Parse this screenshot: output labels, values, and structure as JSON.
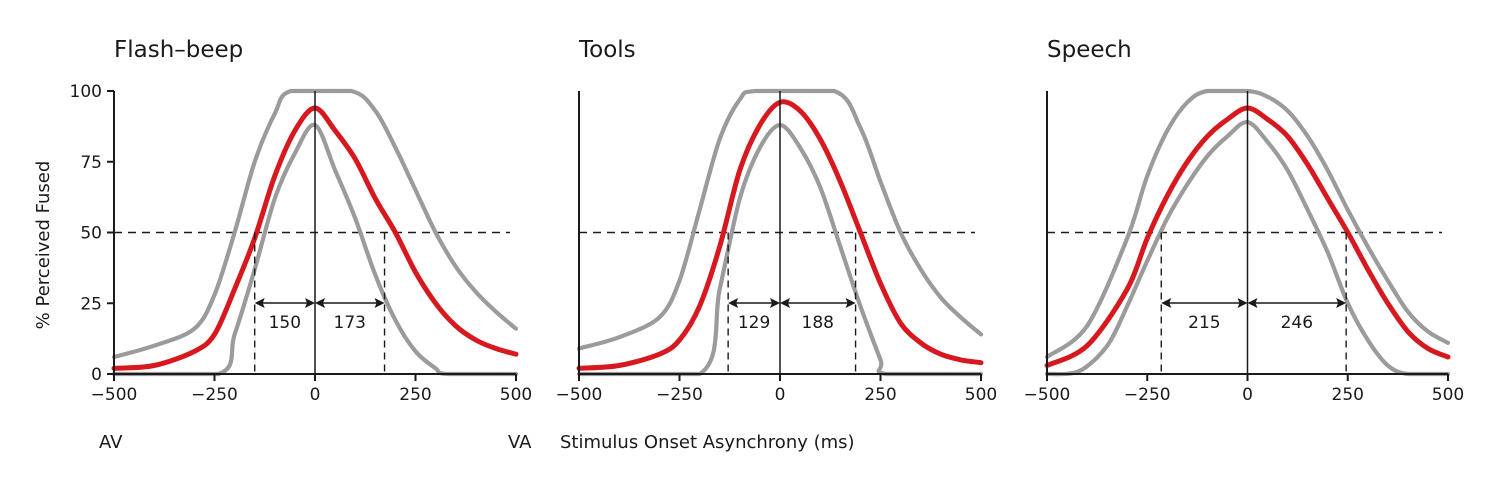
{
  "chart_data": {
    "type": "line",
    "ylabel": "% Perceived Fused",
    "xlabel": "Stimulus Onset Asynchrony (ms)",
    "x_end_labels": {
      "left": "AV",
      "right": "VA"
    },
    "xlim": [
      -500,
      500
    ],
    "ylim": [
      0,
      100
    ],
    "xticks": [
      -500,
      -250,
      0,
      250,
      500
    ],
    "xtick_labels": [
      "−500",
      "−250",
      "0",
      "250",
      "500"
    ],
    "yticks": [
      0,
      25,
      50,
      75,
      100
    ],
    "ytick_labels": [
      "0",
      "25",
      "50",
      "75",
      "100"
    ],
    "threshold": 50,
    "colors": {
      "mean": "#d7191f",
      "bounds": "#9b9b9b",
      "axis": "#1a1a1a"
    },
    "panels": [
      {
        "title": "Flash–beep",
        "window_left": 150,
        "window_right": 173,
        "window_left_label": "150",
        "window_right_label": "173",
        "show_y_ticks": true,
        "series": [
          {
            "name": "upper bound",
            "role": "bounds",
            "x": [
              -500,
              -400,
              -300,
              -250,
              -200,
              -150,
              -100,
              -60,
              90,
              150,
              200,
              250,
              300,
              350,
              400,
              450,
              500
            ],
            "y": [
              6,
              10,
              16,
              28,
              50,
              75,
              92,
              100,
              100,
              93,
              80,
              65,
              50,
              38,
              29,
              22,
              16
            ]
          },
          {
            "name": "lower bound",
            "role": "bounds",
            "x": [
              -500,
              -240,
              -200,
              -150,
              -100,
              -50,
              0,
              50,
              100,
              150,
              200,
              250,
              300,
              330,
              500
            ],
            "y": [
              0,
              0,
              14,
              37,
              62,
              78,
              88,
              72,
              55,
              35,
              19,
              8,
              2,
              0,
              0
            ]
          },
          {
            "name": "mean",
            "role": "mean",
            "x": [
              -500,
              -400,
              -300,
              -250,
              -200,
              -150,
              -100,
              -50,
              0,
              50,
              100,
              150,
              200,
              250,
              300,
              350,
              400,
              450,
              500
            ],
            "y": [
              2,
              3,
              8,
              14,
              30,
              48,
              70,
              86,
              94,
              86,
              76,
              62,
              50,
              36,
              25,
              17,
              12,
              9,
              7
            ]
          }
        ]
      },
      {
        "title": "Tools",
        "window_left": 129,
        "window_right": 188,
        "window_left_label": "129",
        "window_right_label": "188",
        "show_y_ticks": false,
        "series": [
          {
            "name": "upper bound",
            "role": "bounds",
            "x": [
              -500,
              -400,
              -300,
              -250,
              -200,
              -150,
              -100,
              -60,
              135,
              200,
              250,
              300,
              350,
              400,
              450,
              500
            ],
            "y": [
              9,
              13,
              20,
              33,
              58,
              83,
              97,
              100,
              100,
              87,
              68,
              50,
              37,
              27,
              20,
              14
            ]
          },
          {
            "name": "lower bound",
            "role": "bounds",
            "x": [
              -500,
              -200,
              -150,
              -100,
              -50,
              0,
              50,
              100,
              150,
              200,
              250,
              265,
              500
            ],
            "y": [
              0,
              0,
              30,
              62,
              80,
              88,
              80,
              66,
              45,
              24,
              5,
              0,
              0
            ]
          },
          {
            "name": "mean",
            "role": "mean",
            "x": [
              -500,
              -400,
              -300,
              -250,
              -200,
              -150,
              -100,
              -50,
              0,
              50,
              100,
              150,
              200,
              250,
              300,
              350,
              400,
              450,
              500
            ],
            "y": [
              2,
              3,
              7,
              12,
              24,
              45,
              72,
              88,
              96,
              93,
              83,
              68,
              50,
              32,
              18,
              11,
              7,
              5,
              4
            ]
          }
        ]
      },
      {
        "title": "Speech",
        "window_left": 215,
        "window_right": 246,
        "window_left_label": "215",
        "window_right_label": "246",
        "show_y_ticks": false,
        "series": [
          {
            "name": "upper bound",
            "role": "bounds",
            "x": [
              -500,
              -400,
              -300,
              -250,
              -200,
              -150,
              -100,
              0,
              50,
              100,
              150,
              200,
              250,
              300,
              350,
              400,
              450,
              500
            ],
            "y": [
              6,
              17,
              48,
              70,
              86,
              96,
              100,
              100,
              98,
              93,
              84,
              72,
              58,
              45,
              33,
              22,
              15,
              11
            ]
          },
          {
            "name": "lower bound",
            "role": "bounds",
            "x": [
              -500,
              -420,
              -350,
              -300,
              -250,
              -200,
              -150,
              -100,
              -50,
              0,
              50,
              100,
              150,
              200,
              250,
              300,
              350,
              400,
              500
            ],
            "y": [
              0,
              1,
              10,
              24,
              40,
              55,
              67,
              77,
              84,
              89,
              82,
              72,
              58,
              43,
              25,
              12,
              3,
              0,
              0
            ]
          },
          {
            "name": "mean",
            "role": "mean",
            "x": [
              -500,
              -400,
              -300,
              -250,
              -200,
              -150,
              -100,
              -50,
              0,
              50,
              100,
              150,
              200,
              250,
              300,
              350,
              400,
              450,
              500
            ],
            "y": [
              3,
              10,
              30,
              48,
              63,
              75,
              84,
              90,
              94,
              90,
              84,
              74,
              62,
              50,
              37,
              25,
              15,
              9,
              6
            ]
          }
        ]
      }
    ]
  }
}
